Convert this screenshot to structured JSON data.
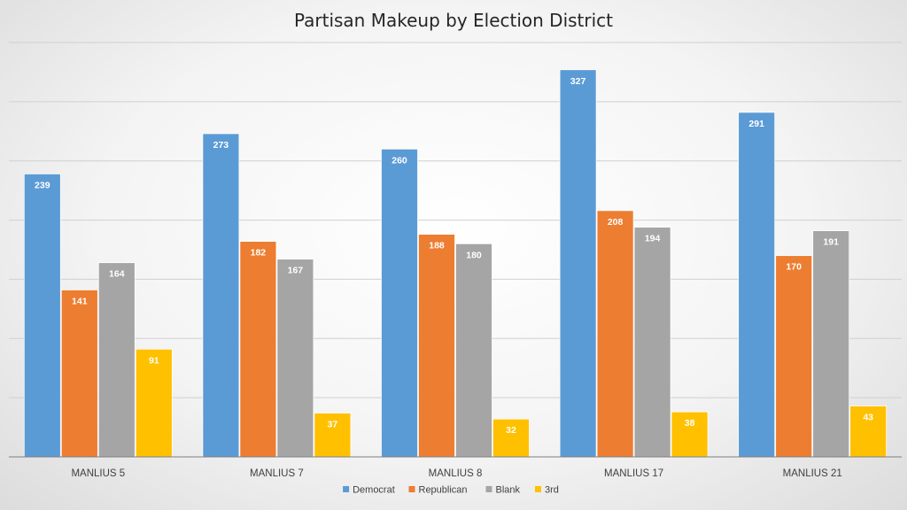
{
  "chart_data": {
    "type": "bar",
    "title": "Partisan Makeup by Election District",
    "categories": [
      "MANLIUS 5",
      "MANLIUS 7",
      "MANLIUS 8",
      "MANLIUS 17",
      "MANLIUS 21"
    ],
    "series": [
      {
        "name": "Democrat",
        "color": "#5b9bd5",
        "values": [
          239,
          273,
          260,
          327,
          291
        ]
      },
      {
        "name": "Republican",
        "color": "#ed7d31",
        "values": [
          141,
          182,
          188,
          208,
          170
        ]
      },
      {
        "name": "Blank",
        "color": "#a5a5a5",
        "values": [
          164,
          167,
          180,
          194,
          191
        ]
      },
      {
        "name": "3rd",
        "color": "#ffc000",
        "values": [
          91,
          37,
          32,
          38,
          43
        ]
      }
    ],
    "ylim": [
      0,
      350
    ],
    "ytick_step": 50,
    "grid": true,
    "legend_position": "bottom",
    "data_labels": true
  }
}
